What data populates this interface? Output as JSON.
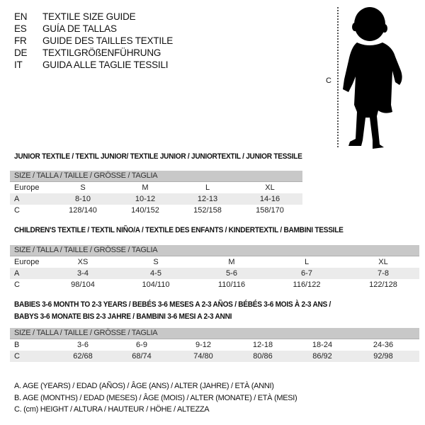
{
  "languages": [
    {
      "code": "EN",
      "text": "TEXTILE SIZE GUIDE"
    },
    {
      "code": "ES",
      "text": "GUÍA DE TALLAS"
    },
    {
      "code": "FR",
      "text": "GUIDE DES TAILLES TEXTILE"
    },
    {
      "code": "DE",
      "text": "TEXTILGRÖßENFÜHRUNG"
    },
    {
      "code": "IT",
      "text": "GUIDA ALLE TAGLIE TESSILI"
    }
  ],
  "figure": {
    "measure_label": "C",
    "icon": "child-silhouette"
  },
  "sections": [
    {
      "title": [
        "JUNIOR TEXTILE / TEXTIL JUNIOR/ TEXTILE JUNIOR / JUNIORTEXTIL / JUNIOR TESSILE"
      ],
      "header": "SIZE / TALLA / TAILLE / GRÖSSE / TAGLIA",
      "rows": [
        {
          "label": "Europe",
          "values": [
            "S",
            "M",
            "L",
            "XL"
          ]
        },
        {
          "label": "A",
          "values": [
            "8-10",
            "10-12",
            "12-13",
            "14-16"
          ]
        },
        {
          "label": "C",
          "values": [
            "128/140",
            "140/152",
            "152/158",
            "158/170"
          ]
        }
      ]
    },
    {
      "title": [
        "CHILDREN'S TEXTILE / TEXTIL NIÑO/A / TEXTILE DES ENFANTS / KINDERTEXTIL / BAMBINI TESSILE"
      ],
      "header": "SIZE / TALLA / TAILLE / GRÖSSE / TAGLIA",
      "rows": [
        {
          "label": "Europe",
          "values": [
            "XS",
            "S",
            "M",
            "L",
            "XL"
          ]
        },
        {
          "label": "A",
          "values": [
            "3-4",
            "4-5",
            "5-6",
            "6-7",
            "7-8"
          ]
        },
        {
          "label": "C",
          "values": [
            "98/104",
            "104/110",
            "110/116",
            "116/122",
            "122/128"
          ]
        }
      ]
    },
    {
      "title": [
        "BABIES 3-6 MONTH TO 2-3 YEARS / BEBÉS 3-6 MESES A 2-3 AÑOS / BÉBÉS 3-6 MOIS À 2-3 ANS /",
        "BABYS 3-6 MONATE BIS 2-3 JAHRE / BAMBINI 3-6 MESI A 2-3 ANNI"
      ],
      "header": "SIZE / TALLA / TAILLE / GRÖSSE / TAGLIA",
      "rows": [
        {
          "label": "B",
          "values": [
            "3-6",
            "6-9",
            "9-12",
            "12-18",
            "18-24",
            "24-36"
          ]
        },
        {
          "label": "C",
          "values": [
            "62/68",
            "68/74",
            "74/80",
            "80/86",
            "86/92",
            "92/98"
          ]
        }
      ]
    }
  ],
  "legend": [
    "A. AGE (YEARS) / EDAD (AÑOS) / ÂGE (ANS) / ALTER (JAHRE) / ETÀ (ANNI)",
    "B. AGE (MONTHS) / EDAD (MESES) / ÂGE (MOIS) / ALTER (MONATE) / ETÀ (MESI)",
    "C. (cm) HEIGHT / ALTURA / HAUTEUR / HÖHE / ALTEZZA"
  ]
}
